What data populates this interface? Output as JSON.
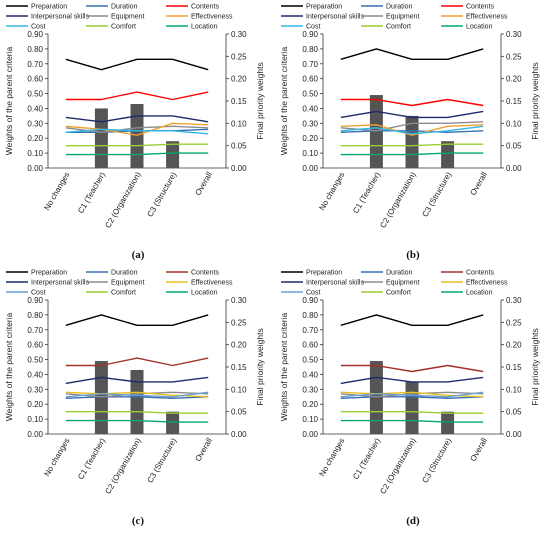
{
  "chart_data": [
    {
      "type": "line",
      "panel_label": "(a)",
      "categories": [
        "No changes",
        "C1 (Teacher)",
        "C2 (Organization)",
        "C3 (Structure)",
        "Overall"
      ],
      "ylabel": "Weights of the parent criteria",
      "y2label": "Final priority weights",
      "ylim": [
        0,
        0.9
      ],
      "y2lim": [
        0,
        0.3
      ],
      "yticks": [
        "0.00",
        "0.10",
        "0.20",
        "0.30",
        "0.40",
        "0.50",
        "0.60",
        "0.70",
        "0.80",
        "0.90"
      ],
      "y2ticks": [
        "0.00",
        "0.05",
        "0.10",
        "0.15",
        "0.20",
        "0.25",
        "0.30"
      ],
      "bars": [
        null,
        0.4,
        0.43,
        0.18,
        null
      ],
      "series": [
        {
          "name": "Preparation",
          "color": "#000000",
          "values": [
            0.73,
            0.66,
            0.73,
            0.73,
            0.66
          ]
        },
        {
          "name": "Duration",
          "color": "#3a6fb0",
          "values": [
            0.24,
            0.24,
            0.25,
            0.25,
            0.26
          ]
        },
        {
          "name": "Contents",
          "color": "#ff0000",
          "values": [
            0.46,
            0.46,
            0.51,
            0.46,
            0.51
          ]
        },
        {
          "name": "Interpersonal skills",
          "color": "#1f2a6b",
          "values": [
            0.34,
            0.31,
            0.35,
            0.35,
            0.31
          ]
        },
        {
          "name": "Equipment",
          "color": "#8c8c8c",
          "values": [
            0.27,
            0.24,
            0.27,
            0.28,
            0.27
          ]
        },
        {
          "name": "Effectiveness",
          "color": "#f0a030",
          "values": [
            0.28,
            0.26,
            0.22,
            0.3,
            0.29
          ]
        },
        {
          "name": "Cost",
          "color": "#33b5e5",
          "values": [
            0.24,
            0.26,
            0.25,
            0.25,
            0.23
          ]
        },
        {
          "name": "Comfort",
          "color": "#9acd32",
          "values": [
            0.15,
            0.15,
            0.15,
            0.16,
            0.16
          ]
        },
        {
          "name": "Location",
          "color": "#00a86b",
          "values": [
            0.09,
            0.09,
            0.09,
            0.1,
            0.1
          ]
        }
      ]
    },
    {
      "type": "line",
      "panel_label": "(b)",
      "categories": [
        "No changes",
        "C1 (Teacher)",
        "C2 (Organization)",
        "C3 (Structure)",
        "Overall"
      ],
      "ylabel": "Weights of the parent criteria",
      "y2label": "Final priority weights",
      "ylim": [
        0,
        0.9
      ],
      "y2lim": [
        0,
        0.3
      ],
      "yticks": [
        "0.00",
        "0.10",
        "0.20",
        "0.30",
        "0.40",
        "0.50",
        "0.60",
        "0.70",
        "0.80",
        "0.90"
      ],
      "y2ticks": [
        "0.00",
        "0.05",
        "0.10",
        "0.15",
        "0.20",
        "0.25",
        "0.30"
      ],
      "bars": [
        null,
        0.49,
        0.35,
        0.18,
        null
      ],
      "series": [
        {
          "name": "Preparation",
          "color": "#000000",
          "values": [
            0.73,
            0.8,
            0.73,
            0.73,
            0.8
          ]
        },
        {
          "name": "Duration",
          "color": "#3a6fb0",
          "values": [
            0.24,
            0.25,
            0.25,
            0.24,
            0.25
          ]
        },
        {
          "name": "Contents",
          "color": "#ff0000",
          "values": [
            0.46,
            0.46,
            0.42,
            0.46,
            0.42
          ]
        },
        {
          "name": "Interpersonal skills",
          "color": "#1f2a6b",
          "values": [
            0.34,
            0.38,
            0.34,
            0.34,
            0.38
          ]
        },
        {
          "name": "Equipment",
          "color": "#8c8c8c",
          "values": [
            0.27,
            0.25,
            0.3,
            0.3,
            0.31
          ]
        },
        {
          "name": "Effectiveness",
          "color": "#f0a030",
          "values": [
            0.28,
            0.29,
            0.22,
            0.28,
            0.29
          ]
        },
        {
          "name": "Cost",
          "color": "#33b5e5",
          "values": [
            0.25,
            0.27,
            0.23,
            0.25,
            0.28
          ]
        },
        {
          "name": "Comfort",
          "color": "#9acd32",
          "values": [
            0.15,
            0.15,
            0.15,
            0.16,
            0.16
          ]
        },
        {
          "name": "Location",
          "color": "#00a86b",
          "values": [
            0.09,
            0.09,
            0.09,
            0.1,
            0.1
          ]
        }
      ]
    },
    {
      "type": "line",
      "panel_label": "(c)",
      "categories": [
        "No changes",
        "C1 (Teacher)",
        "C2 (Organization)",
        "C3 (Structure)",
        "Overall"
      ],
      "ylabel": "Weights of the parent criteria",
      "y2label": "Final priority weights",
      "ylim": [
        0,
        0.9
      ],
      "y2lim": [
        0,
        0.3
      ],
      "yticks": [
        "0.00",
        "0.10",
        "0.20",
        "0.30",
        "0.40",
        "0.50",
        "0.60",
        "0.70",
        "0.80",
        "0.90"
      ],
      "y2ticks": [
        "0.00",
        "0.05",
        "0.10",
        "0.15",
        "0.20",
        "0.25",
        "0.30"
      ],
      "bars": [
        null,
        0.49,
        0.43,
        0.15,
        null
      ],
      "series": [
        {
          "name": "Preparation",
          "color": "#000000",
          "values": [
            0.73,
            0.8,
            0.73,
            0.73,
            0.8
          ]
        },
        {
          "name": "Duration",
          "color": "#3a6fb0",
          "values": [
            0.24,
            0.25,
            0.25,
            0.24,
            0.25
          ]
        },
        {
          "name": "Contents",
          "color": "#a0322a",
          "values": [
            0.46,
            0.46,
            0.51,
            0.46,
            0.51
          ]
        },
        {
          "name": "Interpersonal skills",
          "color": "#1f2a6b",
          "values": [
            0.34,
            0.38,
            0.35,
            0.35,
            0.38
          ]
        },
        {
          "name": "Equipment",
          "color": "#8c8c8c",
          "values": [
            0.27,
            0.25,
            0.27,
            0.28,
            0.27
          ]
        },
        {
          "name": "Effectiveness",
          "color": "#e8c020",
          "values": [
            0.28,
            0.27,
            0.28,
            0.26,
            0.25
          ]
        },
        {
          "name": "Cost",
          "color": "#6a9fd0",
          "values": [
            0.25,
            0.27,
            0.26,
            0.25,
            0.28
          ]
        },
        {
          "name": "Comfort",
          "color": "#9acd32",
          "values": [
            0.15,
            0.15,
            0.15,
            0.14,
            0.14
          ]
        },
        {
          "name": "Location",
          "color": "#00a86b",
          "values": [
            0.09,
            0.09,
            0.09,
            0.08,
            0.08
          ]
        }
      ]
    },
    {
      "type": "line",
      "panel_label": "(d)",
      "categories": [
        "No changes",
        "C1 (Teacher)",
        "C2 (Organization)",
        "C3 (Structure)",
        "Overall"
      ],
      "ylabel": "Weights of the parent criteria",
      "y2label": "Final priority weights",
      "ylim": [
        0,
        0.9
      ],
      "y2lim": [
        0,
        0.3
      ],
      "yticks": [
        "0.00",
        "0.10",
        "0.20",
        "0.30",
        "0.40",
        "0.50",
        "0.60",
        "0.70",
        "0.80",
        "0.90"
      ],
      "y2ticks": [
        "0.00",
        "0.05",
        "0.10",
        "0.15",
        "0.20",
        "0.25",
        "0.30"
      ],
      "bars": [
        null,
        0.49,
        0.35,
        0.15,
        null
      ],
      "series": [
        {
          "name": "Preparation",
          "color": "#000000",
          "values": [
            0.73,
            0.8,
            0.73,
            0.73,
            0.8
          ]
        },
        {
          "name": "Duration",
          "color": "#3a6fb0",
          "values": [
            0.24,
            0.25,
            0.25,
            0.24,
            0.25
          ]
        },
        {
          "name": "Contents",
          "color": "#a0322a",
          "values": [
            0.46,
            0.46,
            0.42,
            0.46,
            0.42
          ]
        },
        {
          "name": "Interpersonal skills",
          "color": "#1f2a6b",
          "values": [
            0.34,
            0.38,
            0.35,
            0.35,
            0.38
          ]
        },
        {
          "name": "Equipment",
          "color": "#8c8c8c",
          "values": [
            0.27,
            0.25,
            0.27,
            0.28,
            0.27
          ]
        },
        {
          "name": "Effectiveness",
          "color": "#e8c020",
          "values": [
            0.28,
            0.27,
            0.28,
            0.26,
            0.25
          ]
        },
        {
          "name": "Cost",
          "color": "#6a9fd0",
          "values": [
            0.25,
            0.27,
            0.26,
            0.25,
            0.28
          ]
        },
        {
          "name": "Comfort",
          "color": "#9acd32",
          "values": [
            0.15,
            0.15,
            0.15,
            0.14,
            0.14
          ]
        },
        {
          "name": "Location",
          "color": "#00a86b",
          "values": [
            0.09,
            0.09,
            0.09,
            0.08,
            0.08
          ]
        }
      ]
    }
  ]
}
